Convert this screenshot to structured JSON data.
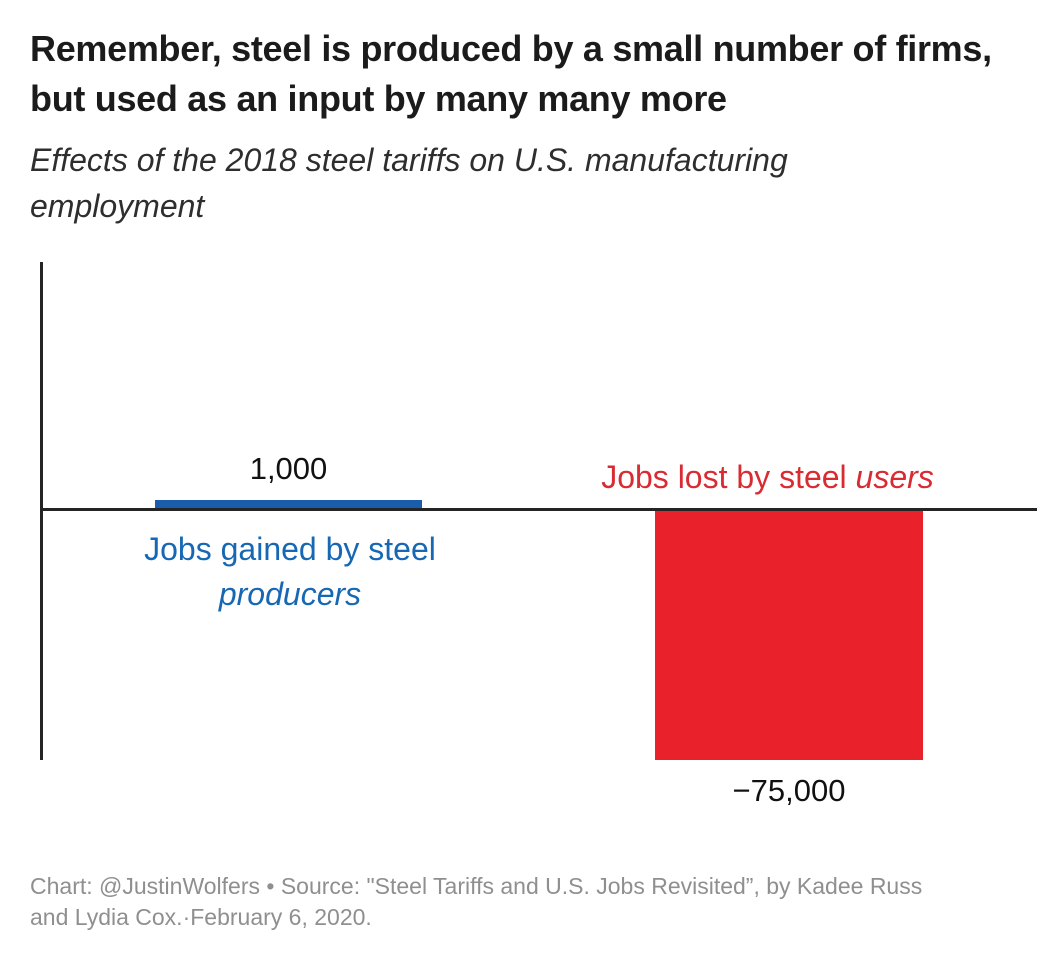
{
  "title": {
    "lines": [
      "Remember, steel is produced by a small number of firms,",
      "but used as an input by many many more"
    ]
  },
  "subtitle": {
    "lines": [
      "Effects of the 2018 steel tariffs on U.S. manufacturing",
      "employment"
    ]
  },
  "chart_data": {
    "type": "bar",
    "categories": [
      "Jobs gained by steel producers",
      "Jobs lost by steel users"
    ],
    "values": [
      1000,
      -75000
    ],
    "value_labels": [
      "1,000",
      "−75,000"
    ],
    "series_colors": [
      "#1a5dab",
      "#e8212b"
    ],
    "title": "Effects of the 2018 steel tariffs on U.S. manufacturing employment",
    "xlabel": "",
    "ylabel": "",
    "ylim": [
      -75000,
      1000
    ],
    "baseline": 0,
    "grid": false,
    "legend": "none",
    "orientation": "vertical"
  },
  "chart": {
    "producers": {
      "value_label": "1,000",
      "label_line1": "Jobs gained by steel",
      "label_line2_italic": "producers",
      "bar_color": "#1a5dab",
      "text_color": "#1768b4"
    },
    "users": {
      "value_label": "−75,000",
      "label_normal": "Jobs lost by steel ",
      "label_italic": "users",
      "bar_color": "#e8212b",
      "text_color": "#d92b32"
    }
  },
  "colors": {
    "background": "#ffffff",
    "title_text": "#1b1b1b",
    "subtitle_text": "#2e2e2e",
    "axis": "#242424",
    "value_text": "#111111",
    "footer_text": "#8f8f8f",
    "bar_blue": "#1a5dab",
    "bar_red": "#e8212b"
  },
  "footer": {
    "lines": [
      "Chart: @JustinWolfers • Source: \"Steel Tariffs and U.S. Jobs Revisited”, by Kadee Russ",
      "and Lydia Cox.·February 6, 2020."
    ]
  }
}
